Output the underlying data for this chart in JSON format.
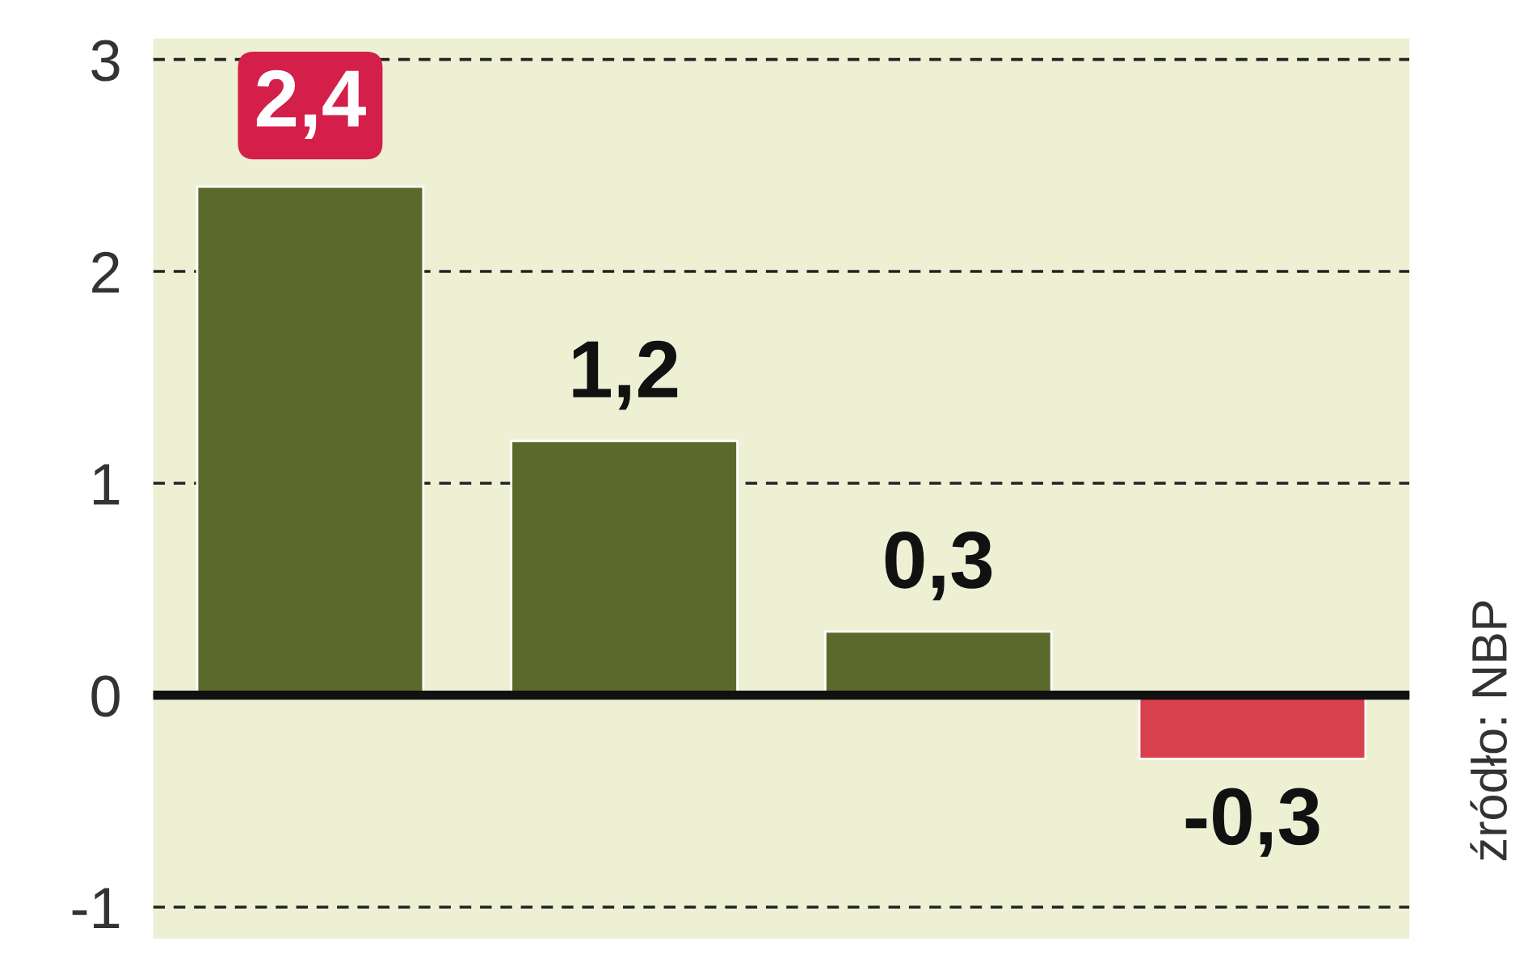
{
  "chart_data": {
    "type": "bar",
    "categories": [
      null,
      null,
      null,
      null
    ],
    "values": [
      2.4,
      1.2,
      0.3,
      -0.3
    ],
    "colors": [
      "#5b6a2c",
      "#5b6a2c",
      "#5b6a2c",
      "#d8404c"
    ],
    "value_labels": [
      "2,4",
      "1,2",
      "0,3",
      "-0,3"
    ],
    "ylim": [
      -1.15,
      3.1
    ],
    "yticks": [
      -1,
      0,
      1,
      2,
      3
    ],
    "grid": "y",
    "annotations": [
      "źródło: NBP"
    ]
  }
}
